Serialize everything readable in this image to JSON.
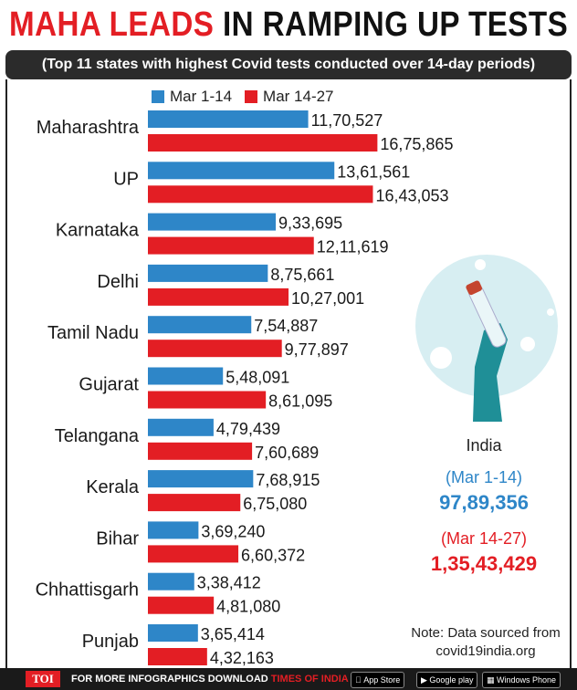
{
  "header": {
    "title_highlight": "MAHA LEADS",
    "title_rest": "IN RAMPING UP TESTS",
    "subtitle": "(Top 11 states with highest Covid tests conducted over 14-day periods)"
  },
  "chart_data": {
    "type": "bar",
    "orientation": "horizontal",
    "categories": [
      "Maharashtra",
      "UP",
      "Karnataka",
      "Delhi",
      "Tamil Nadu",
      "Gujarat",
      "Telangana",
      "Kerala",
      "Bihar",
      "Chhattisgarh",
      "Punjab"
    ],
    "series": [
      {
        "name": "Mar 1-14",
        "color": "#2e86c8",
        "values": [
          1170527,
          1361561,
          933695,
          875661,
          754887,
          548091,
          479439,
          768915,
          369240,
          338412,
          365414
        ],
        "labels": [
          "11,70,527",
          "13,61,561",
          "9,33,695",
          "8,75,661",
          "7,54,887",
          "5,48,091",
          "4,79,439",
          "7,68,915",
          "3,69,240",
          "3,38,412",
          "3,65,414"
        ]
      },
      {
        "name": "Mar 14-27",
        "color": "#e31e24",
        "values": [
          1675865,
          1643053,
          1211619,
          1027001,
          977897,
          861095,
          760689,
          675080,
          660372,
          481080,
          432163
        ],
        "labels": [
          "16,75,865",
          "16,43,053",
          "12,11,619",
          "10,27,001",
          "9,77,897",
          "8,61,095",
          "7,60,689",
          "6,75,080",
          "6,60,372",
          "4,81,080",
          "4,32,163"
        ]
      }
    ],
    "xlim": [
      0,
      1800000
    ],
    "title": "MAHA LEADS IN RAMPING UP TESTS"
  },
  "india": {
    "label": "India",
    "period1": "(Mar 1-14)",
    "value1": "97,89,356",
    "period2": "(Mar 14-27)",
    "value2": "1,35,43,429"
  },
  "note": {
    "line1": "Note: Data sourced from",
    "line2": "covid19india.org"
  },
  "footer": {
    "brand": "TOI",
    "text": "FOR MORE  INFOGRAPHICS DOWNLOAD",
    "app": "TIMES OF INDIA APP",
    "store1": "App Store",
    "store2": "Google play",
    "store3": "Windows Phone"
  },
  "colors": {
    "blue": "#2e86c8",
    "red": "#e31e24"
  }
}
